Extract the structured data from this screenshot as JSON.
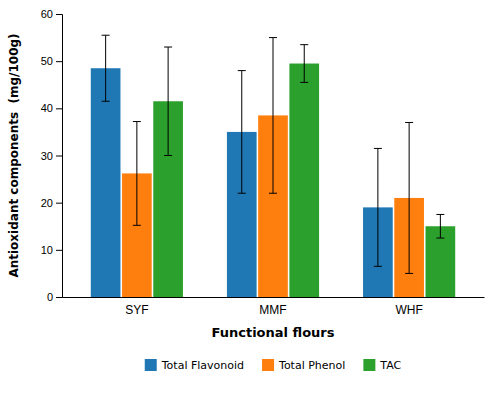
{
  "chart_data": {
    "type": "bar",
    "categories": [
      "SYF",
      "MMF",
      "WHF"
    ],
    "series": [
      {
        "name": "Total Flavonoid",
        "values": [
          48.5,
          35.0,
          19.0
        ],
        "errors": [
          7.0,
          13.0,
          12.5
        ]
      },
      {
        "name": "Total Phenol",
        "values": [
          26.2,
          38.5,
          21.0
        ],
        "errors": [
          11.0,
          16.5,
          16.0
        ]
      },
      {
        "name": "TAC",
        "values": [
          41.5,
          49.5,
          15.0
        ],
        "errors": [
          11.5,
          4.0,
          2.5
        ]
      }
    ],
    "xlabel": "Functional flours",
    "ylabel": "Antioxidant components  (mg/100g)",
    "ylim": [
      0,
      60
    ],
    "yticks": [
      0,
      10,
      20,
      30,
      40,
      50,
      60
    ],
    "grid": false,
    "legend": "bottom"
  }
}
